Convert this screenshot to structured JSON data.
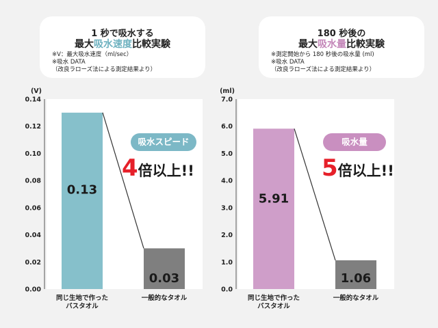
{
  "left": {
    "title_line1": "1 秒で吸水する",
    "title_line2_pre": "最大",
    "title_line2_hl": "吸水速度",
    "title_line2_post": "比較実験",
    "notes": [
      "※V：最大吸水速度（ml/sec）",
      "※吸水 DATA",
      "（改良ラローズ法による測定結果より）"
    ],
    "badge": "吸水スピード",
    "multiplier_num": "4",
    "multiplier_text": "倍以上!!"
  },
  "right": {
    "title_line1": "180 秒後の",
    "title_line2_pre": "最大",
    "title_line2_hl": "吸水量",
    "title_line2_post": "比較実験",
    "notes": [
      "※測定開始から 180 秒後の吸水量 (ml)",
      "※吸水 DATA",
      "（改良ラローズ法による測定結果より）"
    ],
    "badge": "吸水量",
    "multiplier_num": "5",
    "multiplier_text": "倍以上!!"
  },
  "colors": {
    "blue": "#86c0cb",
    "pink": "#cf9ec9",
    "gray": "#7f7f7f",
    "badge_blue": "#7cb8c6",
    "badge_pink": "#c98fc0",
    "accent_red": "#e6202a"
  },
  "chart_data": [
    {
      "type": "bar",
      "unit_label": "(V)",
      "categories": [
        "同じ生地で作った\nバスタオル",
        "一般的なタオル"
      ],
      "values": [
        0.13,
        0.03
      ],
      "value_labels": [
        "0.13",
        "0.03"
      ],
      "ylim": [
        0,
        0.14
      ],
      "yticks": [
        "0.00",
        "0.02",
        "0.04",
        "0.06",
        "0.08",
        "0.10",
        "0.12",
        "0.14"
      ],
      "bar_colors": [
        "#86c0cb",
        "#7f7f7f"
      ],
      "grid": false
    },
    {
      "type": "bar",
      "unit_label": "(ml)",
      "categories": [
        "同じ生地で作った\nバスタオル",
        "一般的なタオル"
      ],
      "values": [
        5.91,
        1.06
      ],
      "value_labels": [
        "5.91",
        "1.06"
      ],
      "ylim": [
        0,
        7
      ],
      "yticks": [
        "0.0",
        "1.0",
        "2.0",
        "3.0",
        "4.0",
        "5.0",
        "6.0",
        "7.0"
      ],
      "bar_colors": [
        "#cf9ec9",
        "#7f7f7f"
      ],
      "grid": false
    }
  ]
}
